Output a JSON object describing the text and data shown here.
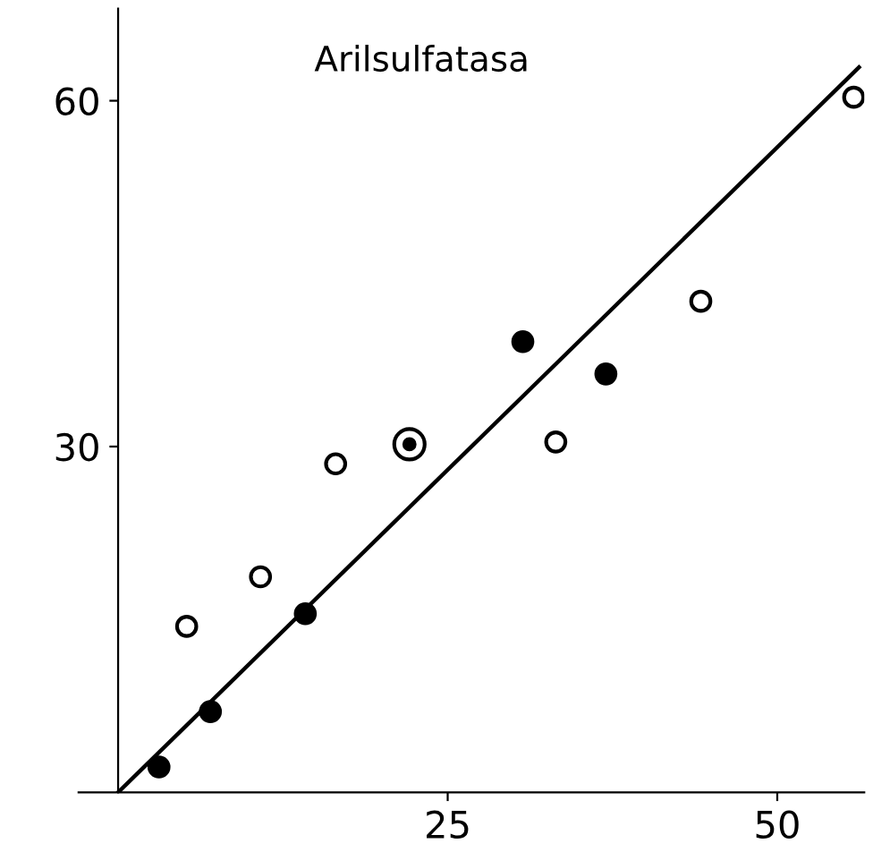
{
  "chart_data": {
    "type": "scatter",
    "title": "Arilsulfatasa",
    "series": [
      {
        "color": "#ffffff",
        "marker": "circle",
        "x": [
          5.2,
          10.8,
          16.5,
          33.2,
          44.2,
          55.8
        ],
        "values": [
          14.4,
          18.7,
          28.5,
          30.4,
          42.6,
          60.3
        ]
      },
      {
        "color": "#000000",
        "marker": "circle",
        "x": [
          3.1,
          7.0,
          14.2,
          30.7,
          37.0
        ],
        "values": [
          2.2,
          7.0,
          15.5,
          39.1,
          36.3
        ]
      },
      {
        "color": "#000000",
        "marker": "circle_dot",
        "x": [
          22.1
        ],
        "values": [
          30.2
        ]
      },
      {
        "type": "line",
        "color": "#000000",
        "x": [
          0,
          56.2
        ],
        "values": [
          0,
          62.9
        ]
      }
    ],
    "xlim": [
      -3,
      56.6
    ],
    "ylim": [
      0,
      68
    ],
    "xticks": [
      25,
      50
    ],
    "yticks": [
      30,
      60
    ],
    "grid": false,
    "legend": false
  }
}
